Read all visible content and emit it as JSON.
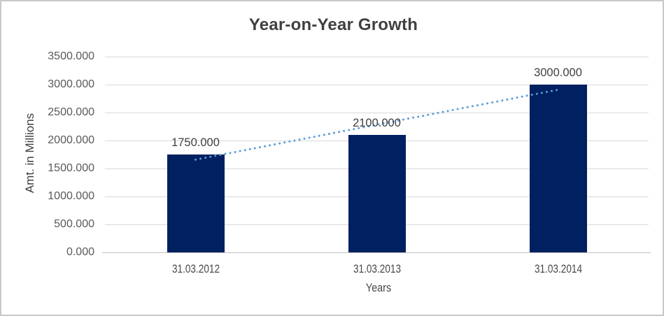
{
  "chart_data": {
    "type": "bar",
    "title": "Year-on-Year Growth",
    "xlabel": "Years",
    "ylabel": "Amt. in Millions",
    "categories": [
      "31.03.2012",
      "31.03.2013",
      "31.03.2014"
    ],
    "values": [
      1750,
      2100,
      3000
    ],
    "data_labels": [
      "1750.000",
      "2100.000",
      "3000.000"
    ],
    "ylim": [
      0,
      3500
    ],
    "ytick_step": 500,
    "yticks": [
      {
        "value": 0,
        "label": "0.000"
      },
      {
        "value": 500,
        "label": "500.000"
      },
      {
        "value": 1000,
        "label": "1000.000"
      },
      {
        "value": 1500,
        "label": "1500.000"
      },
      {
        "value": 2000,
        "label": "2000.000"
      },
      {
        "value": 2500,
        "label": "2500.000"
      },
      {
        "value": 3000,
        "label": "3000.000"
      },
      {
        "value": 3500,
        "label": "3500.000"
      }
    ],
    "grid": true,
    "legend": false,
    "trendline": {
      "type": "linear",
      "style": "dotted",
      "endpoints": [
        1658,
        2908
      ]
    },
    "colors": {
      "bar": "#002060",
      "trendline": "#5b9bd5",
      "gridline": "#d9d9d9",
      "axis_line": "#c0c0c0",
      "title_text": "#404040",
      "tick_text": "#595959",
      "border": "#c9c9c9"
    }
  }
}
